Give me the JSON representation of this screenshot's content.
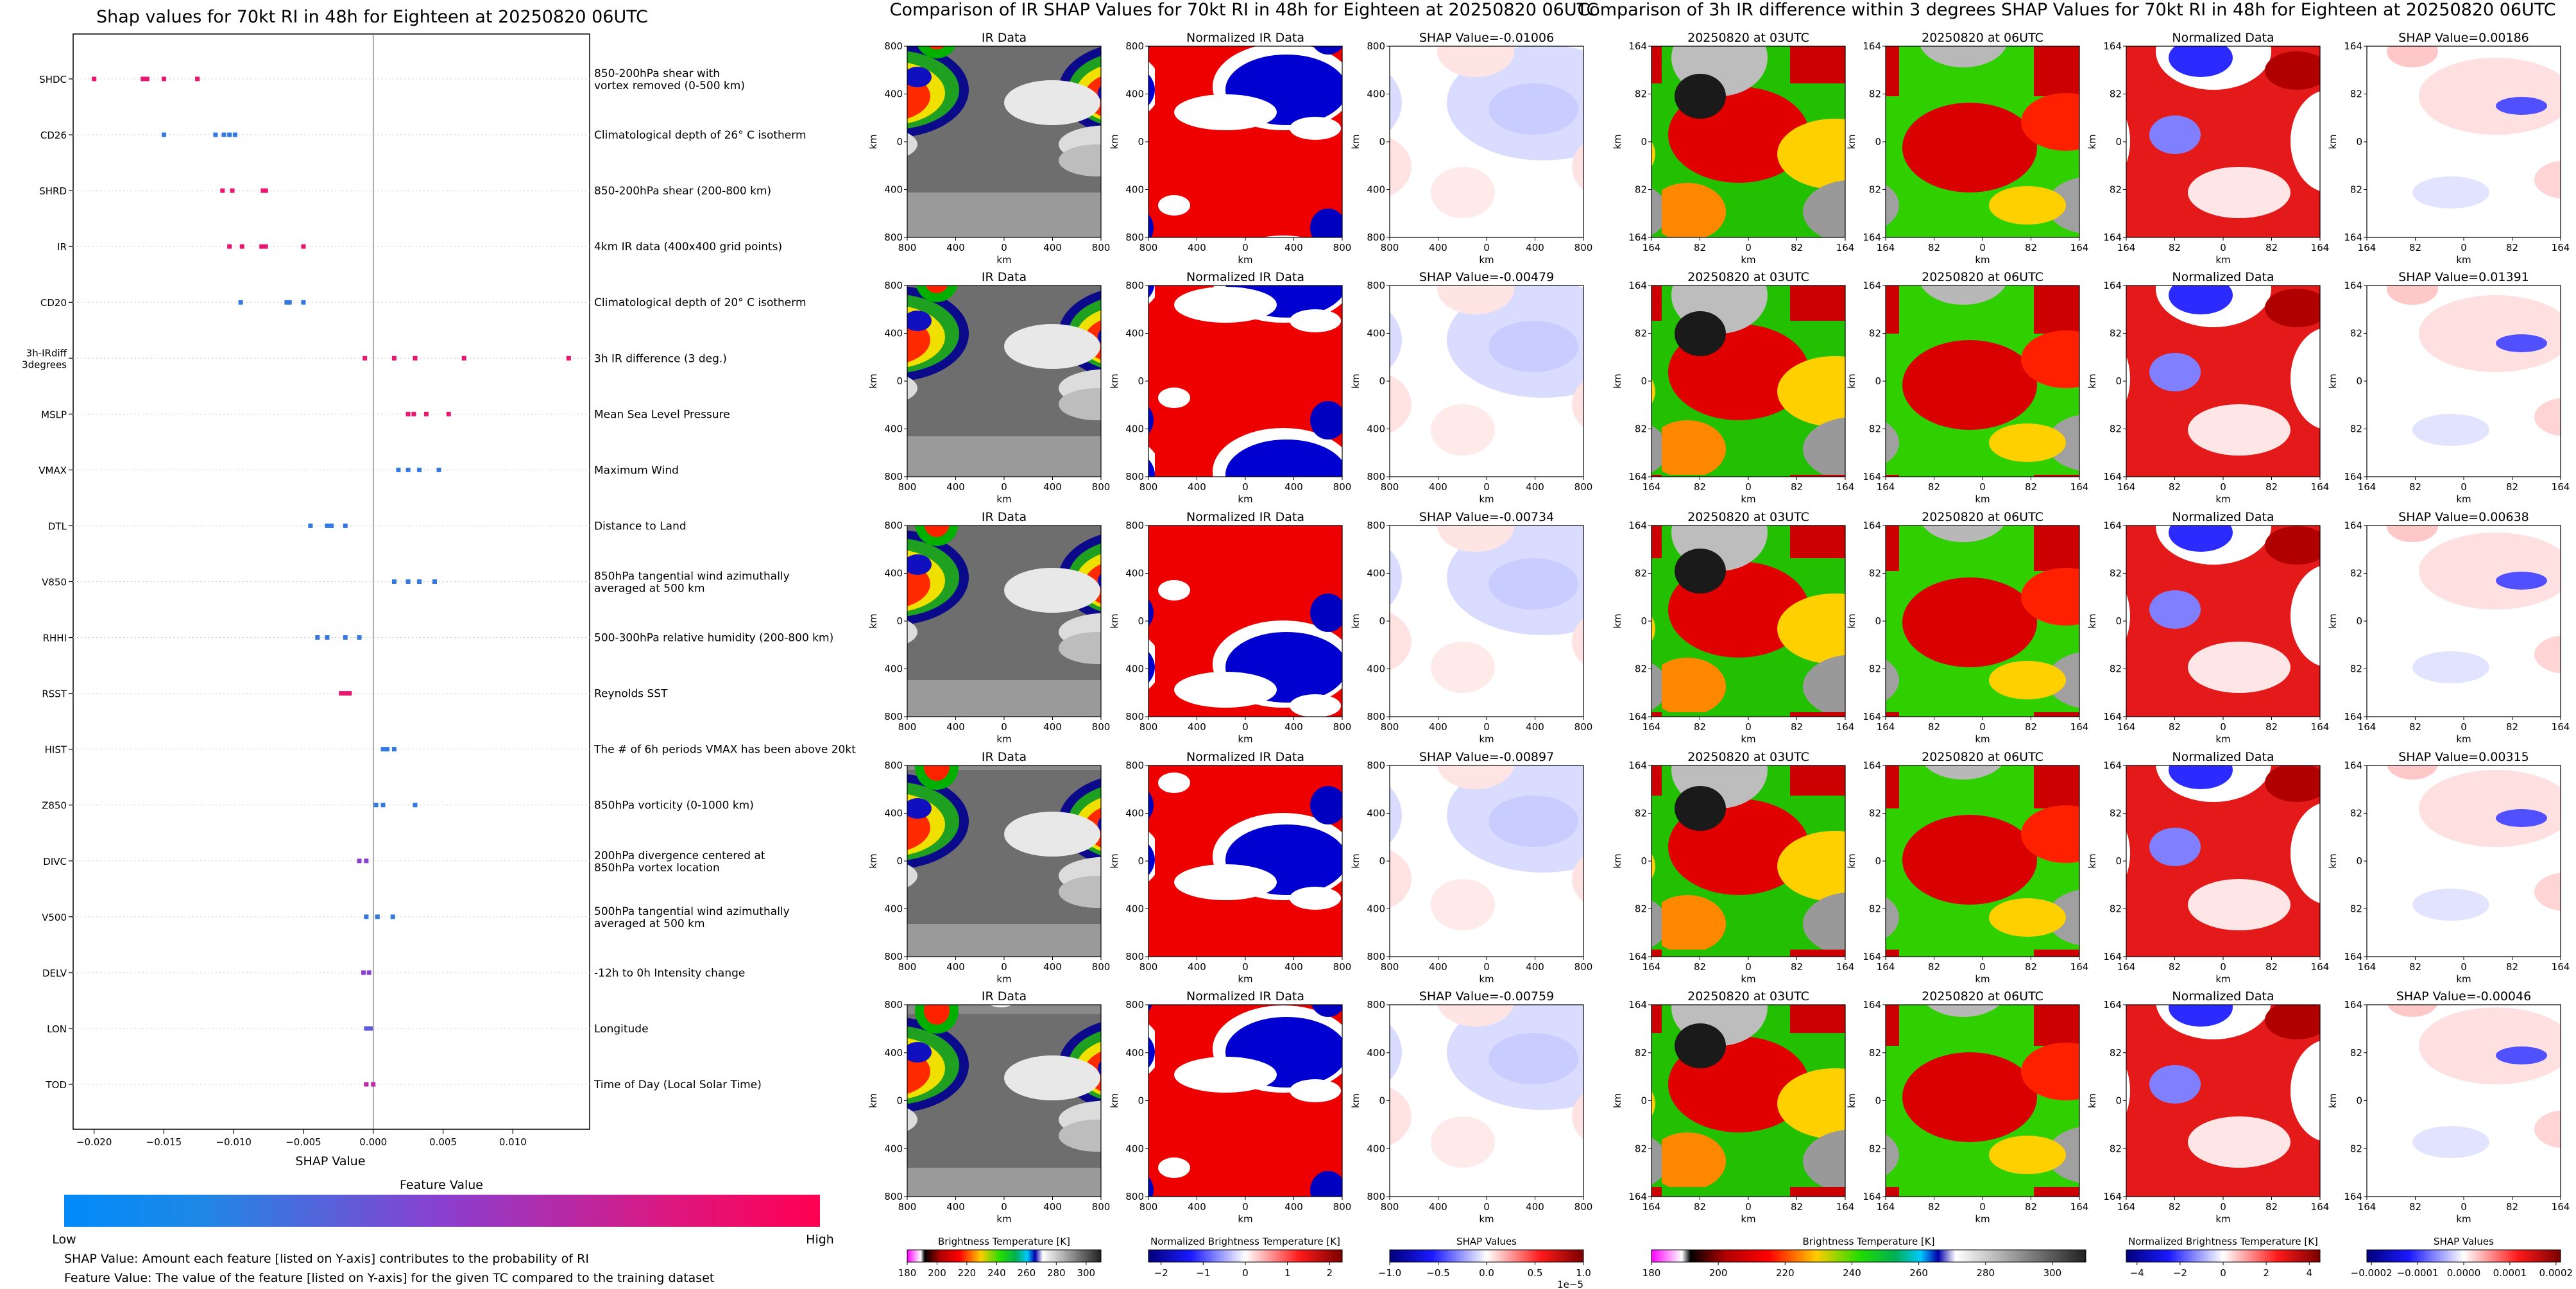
{
  "left_panel": {
    "title": "Shap values for 70kt RI in 48h for Eighteen at 20250820 06UTC",
    "xlabel": "SHAP Value",
    "feature_value_label": "Feature Value",
    "low_label": "Low",
    "high_label": "High",
    "note1": "SHAP Value: Amount each feature [listed on Y-axis] contributes to the probability of RI",
    "note2": "Feature Value: The value of the feature [listed on Y-axis] for the given TC compared to the training dataset",
    "colors": {
      "low": "#1e88e5",
      "mid": "#8a3fd0",
      "high": "#ff0d57"
    }
  },
  "mid_section_title": "Comparison of IR SHAP Values for 70kt RI in 48h for Eighteen at 20250820 06UTC",
  "right_section_title": "Comparison of 3h IR difference within 3 degrees SHAP Values for 70kt RI in 48h for Eighteen at 20250820 06UTC",
  "mid_col_titles": [
    "IR Data",
    "Normalized IR Data"
  ],
  "mid_shap_titles": [
    "SHAP Value=-0.01006",
    "SHAP Value=-0.00479",
    "SHAP Value=-0.00734",
    "SHAP Value=-0.00897",
    "SHAP Value=-0.00759"
  ],
  "right_col_titles": [
    "20250820 at 03UTC",
    "20250820 at 06UTC",
    "Normalized Data"
  ],
  "right_shap_titles": [
    "SHAP Value=0.00186",
    "SHAP Value=0.01391",
    "SHAP Value=0.00638",
    "SHAP Value=0.00315",
    "SHAP Value=-0.00046"
  ],
  "axis_km": "km",
  "mid_y_ticks": [
    "800",
    "400",
    "0",
    "400",
    "800"
  ],
  "mid_x_ticks": [
    "800",
    "400",
    "0",
    "400",
    "800"
  ],
  "right_ticks": [
    "164",
    "82",
    "0",
    "82",
    "164"
  ],
  "colorbars": [
    {
      "label": "Brightness Temperature [K]",
      "ticks": [
        "180",
        "200",
        "220",
        "240",
        "260",
        "280",
        "300"
      ],
      "exponent": ""
    },
    {
      "label": "Normalized Brightness Temperature [K]",
      "ticks": [
        "−2",
        "−1",
        "0",
        "1",
        "2"
      ],
      "exponent": ""
    },
    {
      "label": "SHAP Values",
      "ticks": [
        "−1.0",
        "−0.5",
        "0.0",
        "0.5",
        "1.0"
      ],
      "exponent": "1e−5"
    },
    {
      "label": "Brightness Temperature [K]",
      "ticks": [
        "180",
        "200",
        "220",
        "240",
        "260",
        "280",
        "300"
      ],
      "exponent": ""
    },
    {
      "label": "Normalized Brightness Temperature [K]",
      "ticks": [
        "−4",
        "−2",
        "0",
        "2",
        "4"
      ],
      "exponent": ""
    },
    {
      "label": "SHAP Values",
      "ticks": [
        "−0.0002",
        "−0.0001",
        "0.0000",
        "0.0001",
        "0.0002"
      ],
      "exponent": ""
    }
  ],
  "chart_data": {
    "type": "scatter",
    "title": "Shap values for 70kt RI in 48h for Eighteen at 20250820 06UTC",
    "xlabel": "SHAP Value",
    "ylabel": "",
    "xlim": [
      -0.0215,
      0.0155
    ],
    "x_ticks": [
      -0.02,
      -0.015,
      -0.01,
      -0.005,
      0.0,
      0.005,
      0.01
    ],
    "x_tick_labels": [
      "−0.020",
      "−0.015",
      "−0.010",
      "−0.005",
      "0.000",
      "0.005",
      "0.010"
    ],
    "features": [
      {
        "name": "SHDC",
        "desc": "850-200hPa shear with\nvortex removed (0-500 km)",
        "values": [
          -0.02,
          -0.0165,
          -0.0162,
          -0.015,
          -0.0126
        ],
        "feature_value": [
          0.9,
          0.9,
          0.9,
          0.9,
          0.9
        ]
      },
      {
        "name": "CD26",
        "desc": "Climatological depth of 26° C isotherm",
        "values": [
          -0.015,
          -0.0113,
          -0.0107,
          -0.0103,
          -0.0099
        ],
        "feature_value": [
          0.1,
          0.1,
          0.1,
          0.1,
          0.1
        ]
      },
      {
        "name": "SHRD",
        "desc": "850-200hPa shear (200-800 km)",
        "values": [
          -0.0108,
          -0.0101,
          -0.0079,
          -0.0077
        ],
        "feature_value": [
          0.9,
          0.9,
          0.9,
          0.9
        ]
      },
      {
        "name": "IR",
        "desc": "4km IR data (400x400 grid points)",
        "values": [
          -0.0103,
          -0.0094,
          -0.008,
          -0.0077,
          -0.005
        ],
        "feature_value": [
          0.9,
          0.9,
          0.9,
          0.9,
          0.9
        ]
      },
      {
        "name": "CD20",
        "desc": "Climatological depth of 20° C isotherm",
        "values": [
          -0.0095,
          -0.0062,
          -0.006,
          -0.005
        ],
        "feature_value": [
          0.1,
          0.1,
          0.1,
          0.1
        ]
      },
      {
        "name": "3h-IRdiff\n3degrees",
        "desc": "3h IR difference (3 deg.)",
        "values": [
          -0.0006,
          0.0015,
          0.003,
          0.0065,
          0.014
        ],
        "feature_value": [
          0.9,
          0.9,
          0.9,
          0.9,
          0.9
        ]
      },
      {
        "name": "MSLP",
        "desc": "Mean Sea Level Pressure",
        "values": [
          0.0025,
          0.0029,
          0.0038,
          0.0054
        ],
        "feature_value": [
          0.9,
          0.9,
          0.9,
          0.9
        ]
      },
      {
        "name": "VMAX",
        "desc": "Maximum Wind",
        "values": [
          0.0018,
          0.0025,
          0.0033,
          0.0047
        ],
        "feature_value": [
          0.1,
          0.1,
          0.1,
          0.1
        ]
      },
      {
        "name": "DTL",
        "desc": "Distance to Land",
        "values": [
          -0.0045,
          -0.0033,
          -0.003,
          -0.002
        ],
        "feature_value": [
          0.1,
          0.1,
          0.1,
          0.1
        ]
      },
      {
        "name": "V850",
        "desc": "850hPa tangential wind azimuthally\naveraged at 500 km",
        "values": [
          0.0015,
          0.0025,
          0.0033,
          0.0044
        ],
        "feature_value": [
          0.1,
          0.1,
          0.1,
          0.1
        ]
      },
      {
        "name": "RHHI",
        "desc": "500-300hPa relative humidity (200-800 km)",
        "values": [
          -0.004,
          -0.0033,
          -0.002,
          -0.001
        ],
        "feature_value": [
          0.1,
          0.1,
          0.1,
          0.1
        ]
      },
      {
        "name": "RSST",
        "desc": "Reynolds SST",
        "values": [
          -0.0023,
          -0.002,
          -0.0017
        ],
        "feature_value": [
          0.9,
          0.9,
          0.9
        ]
      },
      {
        "name": "HIST",
        "desc": "The # of 6h periods VMAX has been above 20kt",
        "values": [
          0.0007,
          0.001,
          0.0015
        ],
        "feature_value": [
          0.1,
          0.1,
          0.1
        ]
      },
      {
        "name": "Z850",
        "desc": "850hPa vorticity (0-1000 km)",
        "values": [
          0.0002,
          0.0007,
          0.003
        ],
        "feature_value": [
          0.1,
          0.1,
          0.1
        ]
      },
      {
        "name": "DIVC",
        "desc": "200hPa divergence centered at\n850hPa vortex location",
        "values": [
          -0.001,
          -0.0005
        ],
        "feature_value": [
          0.5,
          0.5
        ]
      },
      {
        "name": "V500",
        "desc": "500hPa tangential wind azimuthally\naveraged at 500 km",
        "values": [
          -0.0005,
          0.0003,
          0.0014
        ],
        "feature_value": [
          0.1,
          0.1,
          0.1
        ]
      },
      {
        "name": "DELV",
        "desc": "-12h to 0h Intensity change",
        "values": [
          -0.0007,
          -0.0003
        ],
        "feature_value": [
          0.5,
          0.5
        ]
      },
      {
        "name": "LON",
        "desc": "Longitude",
        "values": [
          -0.0005,
          -0.0002
        ],
        "feature_value": [
          0.3,
          0.3
        ]
      },
      {
        "name": "TOD",
        "desc": "Time of Day (Local Solar Time)",
        "values": [
          -0.0005,
          0.0
        ],
        "feature_value": [
          0.7,
          0.7
        ]
      }
    ]
  }
}
